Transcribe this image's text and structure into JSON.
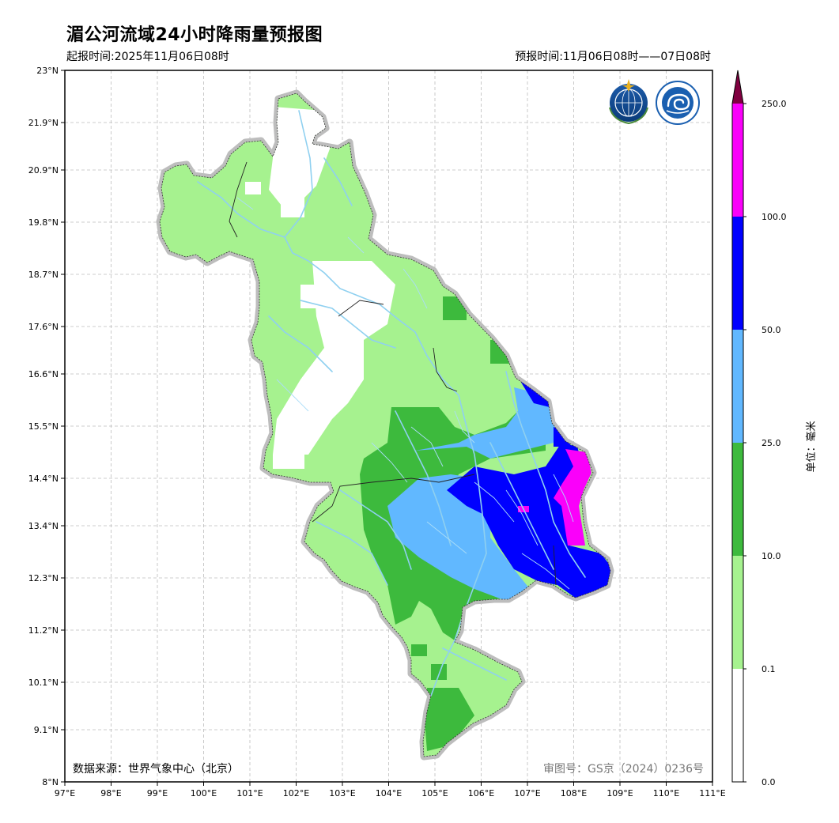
{
  "header": {
    "title": "湄公河流域24小时降雨量预报图",
    "issue_time": "起报时间:2025年11月06日08时",
    "valid_time": "预报时间:11月06日08时——07日08时"
  },
  "map": {
    "lon_range": [
      97,
      111
    ],
    "lat_range": [
      8,
      23
    ],
    "lon_ticks": [
      "97°E",
      "98°E",
      "99°E",
      "100°E",
      "101°E",
      "102°E",
      "103°E",
      "104°E",
      "105°E",
      "106°E",
      "107°E",
      "108°E",
      "109°E",
      "110°E",
      "111°E"
    ],
    "lat_ticks": [
      "23°N",
      "21.9°N",
      "20.9°N",
      "19.8°N",
      "18.7°N",
      "17.6°N",
      "16.6°N",
      "15.5°N",
      "14.4°N",
      "13.4°N",
      "12.3°N",
      "11.2°N",
      "10.1°N",
      "9.1°N",
      "8°N"
    ],
    "grid": true,
    "data_source": "数据来源：世界气象中心（北京）",
    "review_number": "审图号：GS京（2024）0236号",
    "logos": [
      "wmo-logo",
      "cma-logo"
    ]
  },
  "colorbar": {
    "unit_label": "单位：毫米",
    "levels": [
      "0.0",
      "0.1",
      "10.0",
      "25.0",
      "50.0",
      "100.0",
      "250.0"
    ],
    "colors": [
      "#ffffff",
      "#a6f28f",
      "#3dba3d",
      "#61b8ff",
      "#0000ff",
      "#fa00fa",
      "#800040"
    ]
  }
}
